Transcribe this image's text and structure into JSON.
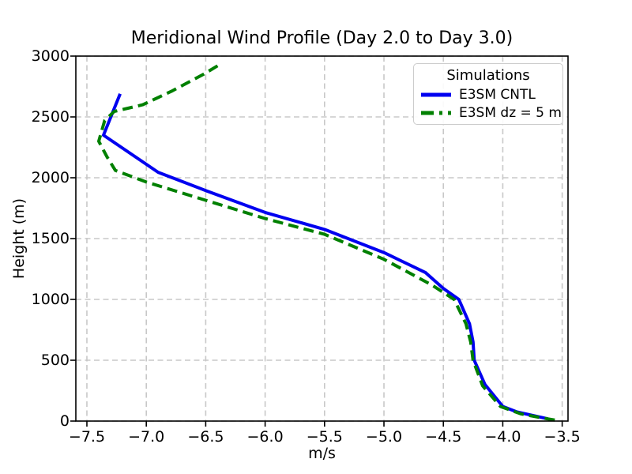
{
  "figure": {
    "background": "#ffffff"
  },
  "chart_data": {
    "type": "line",
    "title": "Meridional Wind Profile (Day 2.0 to Day 3.0)",
    "xlabel": "m/s",
    "ylabel": "Height (m)",
    "xlim": [
      -7.593,
      -3.451
    ],
    "ylim": [
      0,
      3000
    ],
    "xticks": [
      -7.5,
      -7.0,
      -6.5,
      -6.0,
      -5.5,
      -5.0,
      -4.5,
      -4.0,
      -3.5
    ],
    "xtick_labels": [
      "−7.5",
      "−7.0",
      "−6.5",
      "−6.0",
      "−5.5",
      "−5.0",
      "−4.5",
      "−4.0",
      "−3.5"
    ],
    "yticks": [
      0,
      500,
      1000,
      1500,
      2000,
      2500,
      3000
    ],
    "ytick_labels": [
      "0",
      "500",
      "1000",
      "1500",
      "2000",
      "2500",
      "3000"
    ],
    "grid": {
      "show": true,
      "color": "#c8c8c8",
      "style": "dashed"
    },
    "axes_color": "#000000",
    "legend": {
      "title": "Simulations",
      "position": "upper-right"
    },
    "series": [
      {
        "name": "E3SM CNTL",
        "color": "#0000f0",
        "style": "solid",
        "line_width": 4,
        "points": [
          [
            -7.22,
            2690
          ],
          [
            -7.36,
            2350
          ],
          [
            -6.9,
            2045
          ],
          [
            -6.5,
            1895
          ],
          [
            -6.0,
            1715
          ],
          [
            -5.5,
            1575
          ],
          [
            -5.0,
            1385
          ],
          [
            -4.65,
            1220
          ],
          [
            -4.5,
            1090
          ],
          [
            -4.37,
            1000
          ],
          [
            -4.28,
            800
          ],
          [
            -4.25,
            650
          ],
          [
            -4.24,
            500
          ],
          [
            -4.15,
            300
          ],
          [
            -4.0,
            120
          ],
          [
            -3.88,
            75
          ],
          [
            -3.72,
            40
          ],
          [
            -3.62,
            18
          ]
        ]
      },
      {
        "name": "E3SM dz = 5 m",
        "color": "#008000",
        "style": "dashed",
        "line_width": 4,
        "points": [
          [
            -6.4,
            2920
          ],
          [
            -6.52,
            2850
          ],
          [
            -6.78,
            2715
          ],
          [
            -7.03,
            2600
          ],
          [
            -7.27,
            2545
          ],
          [
            -7.35,
            2470
          ],
          [
            -7.4,
            2300
          ],
          [
            -7.33,
            2170
          ],
          [
            -7.26,
            2060
          ],
          [
            -7.0,
            1965
          ],
          [
            -6.5,
            1815
          ],
          [
            -6.0,
            1665
          ],
          [
            -5.5,
            1535
          ],
          [
            -5.0,
            1330
          ],
          [
            -4.6,
            1120
          ],
          [
            -4.41,
            1000
          ],
          [
            -4.31,
            800
          ],
          [
            -4.27,
            650
          ],
          [
            -4.25,
            500
          ],
          [
            -4.17,
            290
          ],
          [
            -4.02,
            120
          ],
          [
            -3.85,
            60
          ],
          [
            -3.68,
            28
          ],
          [
            -3.56,
            8
          ]
        ]
      }
    ]
  }
}
